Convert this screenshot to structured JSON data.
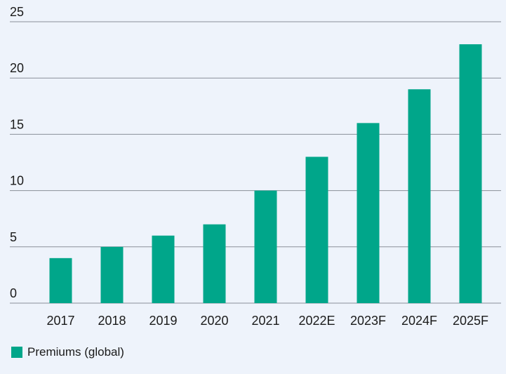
{
  "colors": {
    "background": "#eef3fb",
    "bar": "#00a68a",
    "grid": "#8a8f99",
    "text": "#1a1a1a"
  },
  "legend": {
    "label": "Premiums (global)"
  },
  "chart_data": {
    "type": "bar",
    "title": "",
    "xlabel": "",
    "ylabel": "",
    "categories": [
      "2017",
      "2018",
      "2019",
      "2020",
      "2021",
      "2022E",
      "2023F",
      "2024F",
      "2025F"
    ],
    "series": [
      {
        "name": "Premiums (global)",
        "values": [
          4,
          5,
          6,
          7,
          10,
          13,
          16,
          19,
          23
        ]
      }
    ],
    "ylim": [
      0,
      25
    ],
    "yticks": [
      0,
      5,
      10,
      15,
      20,
      25
    ],
    "grid": true,
    "legend_position": "bottom-left"
  }
}
